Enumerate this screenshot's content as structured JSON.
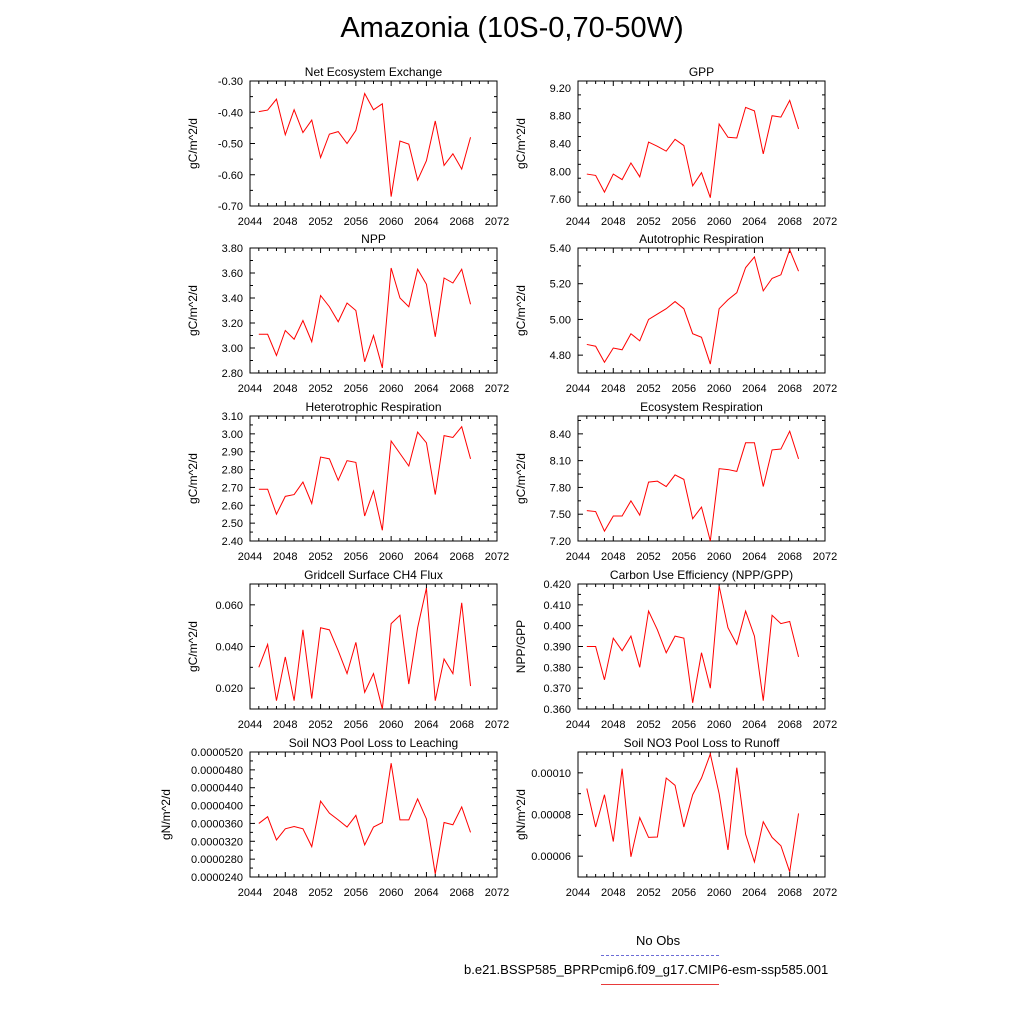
{
  "figure": {
    "title": "Amazonia (10S-0,70-50W)",
    "line_color": "#ff0000",
    "obs_color": "#6b6bd6"
  },
  "legend": {
    "obs_label": "No Obs",
    "model_label": "b.e21.BSSP585_BPRPcmip6.f09_g17.CMIP6-esm-ssp585.001"
  },
  "chart_data": [
    {
      "type": "line",
      "title": "Net Ecosystem Exchange",
      "ylabel": "gC/m^2/d",
      "xlim": [
        2044,
        2072
      ],
      "xticks": [
        "2044",
        "2048",
        "2052",
        "2056",
        "2060",
        "2064",
        "2068",
        "2072"
      ],
      "ylim": [
        -0.7,
        -0.3
      ],
      "yticks": [
        "-0.30",
        "-0.40",
        "-0.50",
        "-0.60",
        "-0.70"
      ],
      "x": [
        2045,
        2046,
        2047,
        2048,
        2049,
        2050,
        2051,
        2052,
        2053,
        2054,
        2055,
        2056,
        2057,
        2058,
        2059,
        2060,
        2061,
        2062,
        2063,
        2064,
        2065,
        2066,
        2067,
        2068,
        2069
      ],
      "values": [
        -0.398,
        -0.393,
        -0.358,
        -0.472,
        -0.392,
        -0.465,
        -0.425,
        -0.545,
        -0.47,
        -0.462,
        -0.5,
        -0.458,
        -0.34,
        -0.392,
        -0.373,
        -0.67,
        -0.492,
        -0.502,
        -0.617,
        -0.555,
        -0.428,
        -0.57,
        -0.533,
        -0.582,
        -0.48
      ]
    },
    {
      "type": "line",
      "title": "GPP",
      "ylabel": "gC/m^2/d",
      "xlim": [
        2044,
        2072
      ],
      "xticks": [
        "2044",
        "2048",
        "2052",
        "2056",
        "2060",
        "2064",
        "2068",
        "2072"
      ],
      "ylim": [
        7.5,
        9.3
      ],
      "yticks": [
        "9.20",
        "8.80",
        "8.40",
        "8.00",
        "7.60"
      ],
      "x": [
        2045,
        2046,
        2047,
        2048,
        2049,
        2050,
        2051,
        2052,
        2053,
        2054,
        2055,
        2056,
        2057,
        2058,
        2059,
        2060,
        2061,
        2062,
        2063,
        2064,
        2065,
        2066,
        2067,
        2068,
        2069
      ],
      "values": [
        7.96,
        7.94,
        7.7,
        7.96,
        7.88,
        8.12,
        7.92,
        8.42,
        8.36,
        8.29,
        8.46,
        8.37,
        7.79,
        7.98,
        7.62,
        8.68,
        8.49,
        8.48,
        8.92,
        8.87,
        8.25,
        8.8,
        8.78,
        9.02,
        8.61
      ]
    },
    {
      "type": "line",
      "title": "NPP",
      "ylabel": "gC/m^2/d",
      "xlim": [
        2044,
        2072
      ],
      "xticks": [
        "2044",
        "2048",
        "2052",
        "2056",
        "2060",
        "2064",
        "2068",
        "2072"
      ],
      "ylim": [
        2.8,
        3.8
      ],
      "yticks": [
        "3.80",
        "3.60",
        "3.40",
        "3.20",
        "3.00",
        "2.80"
      ],
      "x": [
        2045,
        2046,
        2047,
        2048,
        2049,
        2050,
        2051,
        2052,
        2053,
        2054,
        2055,
        2056,
        2057,
        2058,
        2059,
        2060,
        2061,
        2062,
        2063,
        2064,
        2065,
        2066,
        2067,
        2068,
        2069
      ],
      "values": [
        3.11,
        3.11,
        2.94,
        3.14,
        3.07,
        3.22,
        3.05,
        3.42,
        3.33,
        3.21,
        3.36,
        3.3,
        2.89,
        3.1,
        2.84,
        3.64,
        3.4,
        3.33,
        3.63,
        3.51,
        3.09,
        3.56,
        3.52,
        3.63,
        3.35
      ]
    },
    {
      "type": "line",
      "title": "Autotrophic Respiration",
      "ylabel": "gC/m^2/d",
      "xlim": [
        2044,
        2072
      ],
      "xticks": [
        "2044",
        "2048",
        "2052",
        "2056",
        "2060",
        "2064",
        "2068",
        "2072"
      ],
      "ylim": [
        4.7,
        5.4
      ],
      "yticks": [
        "5.40",
        "5.20",
        "5.00",
        "4.80"
      ],
      "x": [
        2045,
        2046,
        2047,
        2048,
        2049,
        2050,
        2051,
        2052,
        2053,
        2054,
        2055,
        2056,
        2057,
        2058,
        2059,
        2060,
        2061,
        2062,
        2063,
        2064,
        2065,
        2066,
        2067,
        2068,
        2069
      ],
      "values": [
        4.86,
        4.85,
        4.76,
        4.84,
        4.83,
        4.92,
        4.88,
        5.0,
        5.03,
        5.06,
        5.1,
        5.06,
        4.92,
        4.9,
        4.75,
        5.06,
        5.11,
        5.15,
        5.29,
        5.35,
        5.16,
        5.23,
        5.25,
        5.39,
        5.27
      ]
    },
    {
      "type": "line",
      "title": "Heterotrophic Respiration",
      "ylabel": "gC/m^2/d",
      "xlim": [
        2044,
        2072
      ],
      "xticks": [
        "2044",
        "2048",
        "2052",
        "2056",
        "2060",
        "2064",
        "2068",
        "2072"
      ],
      "ylim": [
        2.4,
        3.1
      ],
      "yticks": [
        "3.10",
        "3.00",
        "2.90",
        "2.80",
        "2.70",
        "2.60",
        "2.50",
        "2.40"
      ],
      "x": [
        2045,
        2046,
        2047,
        2048,
        2049,
        2050,
        2051,
        2052,
        2053,
        2054,
        2055,
        2056,
        2057,
        2058,
        2059,
        2060,
        2061,
        2062,
        2063,
        2064,
        2065,
        2066,
        2067,
        2068,
        2069
      ],
      "values": [
        2.69,
        2.69,
        2.55,
        2.65,
        2.66,
        2.73,
        2.61,
        2.87,
        2.86,
        2.74,
        2.85,
        2.84,
        2.54,
        2.68,
        2.46,
        2.96,
        2.89,
        2.82,
        3.01,
        2.95,
        2.66,
        2.99,
        2.98,
        3.04,
        2.86
      ]
    },
    {
      "type": "line",
      "title": "Ecosystem Respiration",
      "ylabel": "gC/m^2/d",
      "xlim": [
        2044,
        2072
      ],
      "xticks": [
        "2044",
        "2048",
        "2052",
        "2056",
        "2060",
        "2064",
        "2068",
        "2072"
      ],
      "ylim": [
        7.2,
        8.6
      ],
      "yticks": [
        "8.40",
        "8.10",
        "7.80",
        "7.50",
        "7.20"
      ],
      "x": [
        2045,
        2046,
        2047,
        2048,
        2049,
        2050,
        2051,
        2052,
        2053,
        2054,
        2055,
        2056,
        2057,
        2058,
        2059,
        2060,
        2061,
        2062,
        2063,
        2064,
        2065,
        2066,
        2067,
        2068,
        2069
      ],
      "values": [
        7.54,
        7.53,
        7.31,
        7.48,
        7.48,
        7.65,
        7.49,
        7.86,
        7.87,
        7.81,
        7.94,
        7.89,
        7.45,
        7.58,
        7.2,
        8.01,
        8.0,
        7.98,
        8.3,
        8.3,
        7.81,
        8.22,
        8.23,
        8.43,
        8.12
      ]
    },
    {
      "type": "line",
      "title": "Gridcell Surface CH4 Flux",
      "ylabel": "gC/m^2/d",
      "xlim": [
        2044,
        2072
      ],
      "xticks": [
        "2044",
        "2048",
        "2052",
        "2056",
        "2060",
        "2064",
        "2068",
        "2072"
      ],
      "ylim": [
        0.01,
        0.07
      ],
      "yticks": [
        "0.060",
        "0.040",
        "0.020"
      ],
      "x": [
        2045,
        2046,
        2047,
        2048,
        2049,
        2050,
        2051,
        2052,
        2053,
        2054,
        2055,
        2056,
        2057,
        2058,
        2059,
        2060,
        2061,
        2062,
        2063,
        2064,
        2065,
        2066,
        2067,
        2068,
        2069
      ],
      "values": [
        0.03,
        0.041,
        0.014,
        0.035,
        0.014,
        0.048,
        0.015,
        0.049,
        0.048,
        0.038,
        0.027,
        0.042,
        0.018,
        0.027,
        0.01,
        0.051,
        0.055,
        0.022,
        0.049,
        0.068,
        0.014,
        0.034,
        0.027,
        0.061,
        0.021
      ]
    },
    {
      "type": "line",
      "title": "Carbon Use Efficiency (NPP/GPP)",
      "ylabel": "NPP/GPP",
      "xlim": [
        2044,
        2072
      ],
      "xticks": [
        "2044",
        "2048",
        "2052",
        "2056",
        "2060",
        "2064",
        "2068",
        "2072"
      ],
      "ylim": [
        0.36,
        0.42
      ],
      "yticks": [
        "0.420",
        "0.410",
        "0.400",
        "0.390",
        "0.380",
        "0.370",
        "0.360"
      ],
      "x": [
        2045,
        2046,
        2047,
        2048,
        2049,
        2050,
        2051,
        2052,
        2053,
        2054,
        2055,
        2056,
        2057,
        2058,
        2059,
        2060,
        2061,
        2062,
        2063,
        2064,
        2065,
        2066,
        2067,
        2068,
        2069
      ],
      "values": [
        0.39,
        0.39,
        0.374,
        0.394,
        0.388,
        0.395,
        0.38,
        0.407,
        0.398,
        0.387,
        0.395,
        0.394,
        0.363,
        0.387,
        0.37,
        0.419,
        0.399,
        0.391,
        0.407,
        0.395,
        0.364,
        0.405,
        0.401,
        0.402,
        0.385
      ]
    },
    {
      "type": "line",
      "title": "Soil NO3 Pool Loss to Leaching",
      "ylabel": "gN/m^2/d",
      "xlim": [
        2044,
        2072
      ],
      "xticks": [
        "2044",
        "2048",
        "2052",
        "2056",
        "2060",
        "2064",
        "2068",
        "2072"
      ],
      "ylim": [
        2.4e-05,
        5.2e-05
      ],
      "yticks": [
        "0.0000520",
        "0.0000480",
        "0.0000440",
        "0.0000400",
        "0.0000360",
        "0.0000320",
        "0.0000280",
        "0.0000240"
      ],
      "x": [
        2045,
        2046,
        2047,
        2048,
        2049,
        2050,
        2051,
        2052,
        2053,
        2054,
        2055,
        2056,
        2057,
        2058,
        2059,
        2060,
        2061,
        2062,
        2063,
        2064,
        2065,
        2066,
        2067,
        2068,
        2069
      ],
      "values": [
        3.6e-05,
        3.75e-05,
        3.23e-05,
        3.48e-05,
        3.53e-05,
        3.48e-05,
        3.08e-05,
        4.1e-05,
        3.83e-05,
        3.68e-05,
        3.52e-05,
        3.78e-05,
        3.12e-05,
        3.52e-05,
        3.62e-05,
        4.95e-05,
        3.68e-05,
        3.68e-05,
        4.15e-05,
        3.7e-05,
        2.47e-05,
        3.62e-05,
        3.57e-05,
        3.97e-05,
        3.4e-05
      ]
    },
    {
      "type": "line",
      "title": "Soil NO3 Pool Loss to Runoff",
      "ylabel": "gN/m^2/d",
      "xlim": [
        2044,
        2072
      ],
      "xticks": [
        "2044",
        "2048",
        "2052",
        "2056",
        "2060",
        "2064",
        "2068",
        "2072"
      ],
      "ylim": [
        5e-05,
        0.00011
      ],
      "yticks": [
        "0.00010",
        "0.00008",
        "0.00006"
      ],
      "x": [
        2045,
        2046,
        2047,
        2048,
        2049,
        2050,
        2051,
        2052,
        2053,
        2054,
        2055,
        2056,
        2057,
        2058,
        2059,
        2060,
        2061,
        2062,
        2063,
        2064,
        2065,
        2066,
        2067,
        2068,
        2069
      ],
      "values": [
        9.25e-05,
        7.4e-05,
        8.95e-05,
        6.7e-05,
        0.000102,
        5.97e-05,
        7.85e-05,
        6.9e-05,
        6.92e-05,
        9.75e-05,
        9.4e-05,
        7.4e-05,
        8.95e-05,
        9.75e-05,
        0.000109,
        9e-05,
        6.3e-05,
        0.0001025,
        7.05e-05,
        5.72e-05,
        7.65e-05,
        6.9e-05,
        6.5e-05,
        5.25e-05,
        8.05e-05
      ]
    }
  ]
}
